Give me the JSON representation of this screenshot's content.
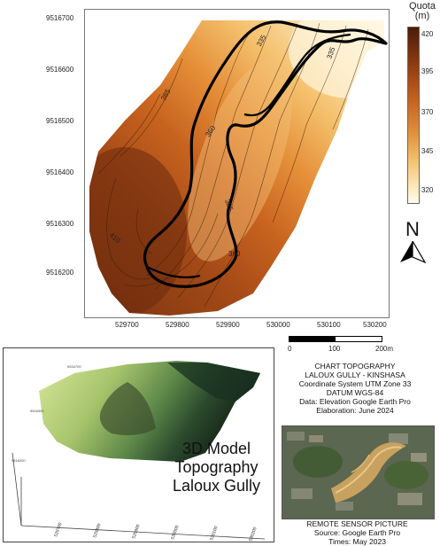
{
  "legend": {
    "title_line1": "Quota",
    "title_line2": "(m)",
    "ticks": [
      "420",
      "395",
      "370",
      "345",
      "320"
    ],
    "colors": [
      "#4a1c08",
      "#8a3a12",
      "#c25f1f",
      "#e0903a",
      "#f2bf6c",
      "#fbe6b6",
      "#fffbf0"
    ]
  },
  "map": {
    "y_ticks": [
      "9516700",
      "9516600",
      "9516500",
      "9516400",
      "9516300",
      "9516200"
    ],
    "x_ticks": [
      "529700",
      "529800",
      "529900",
      "530000",
      "530100",
      "530200"
    ],
    "contour_labels": [
      "335",
      "335",
      "385",
      "360",
      "385",
      "410",
      "360"
    ],
    "north_label": "N",
    "scale_labels": [
      "0",
      "100",
      "200m"
    ]
  },
  "info": {
    "line1": "CHART TOPOGRAPHY",
    "line2": "LALOUX GULLY - KINSHASA",
    "line3": "Coordinate System UTM Zone 33",
    "line4": "DATUM WGS-84",
    "line5": "Data: Elevation Google Earth Pro",
    "line6": "Elaboration: June 2024"
  },
  "model": {
    "title_line1": "3D Model",
    "title_line2": "Topography",
    "title_line3": "Laloux Gully",
    "axis_ticks": [
      "529700",
      "529800",
      "529900",
      "530000",
      "530100",
      "530200"
    ],
    "side_ticks": [
      "9516700",
      "9516300",
      "9516200"
    ]
  },
  "photo": {
    "caption1": "REMOTE SENSOR PICTURE",
    "caption2": "Source: Google Earth Pro",
    "caption3": "Times: May 2023"
  }
}
